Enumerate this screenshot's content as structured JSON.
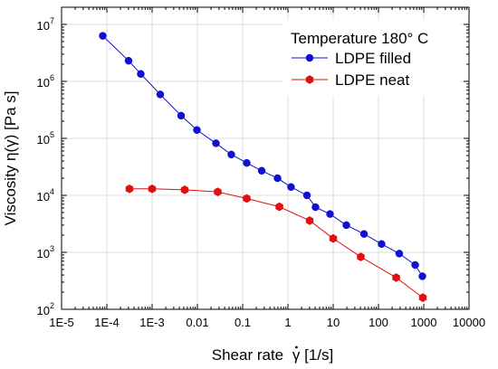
{
  "chart_data": {
    "type": "line",
    "title": "",
    "xlabel_prefix": "Shear rate",
    "xlabel_symbol": "γ",
    "xlabel_suffix": " [1/s]",
    "ylabel": "Viscosity η(γ) [Pa s]",
    "x_scale": "log",
    "y_scale": "log",
    "xlim": [
      1e-05,
      10000
    ],
    "ylim": [
      100,
      20000000
    ],
    "grid": true,
    "legend_position": "top-right",
    "legend_title": "Temperature 180° C",
    "x_ticks": [
      {
        "value": 1e-05,
        "label": "1E-5"
      },
      {
        "value": 0.0001,
        "label": "1E-4"
      },
      {
        "value": 0.001,
        "label": "1E-3"
      },
      {
        "value": 0.01,
        "label": "0.01"
      },
      {
        "value": 0.1,
        "label": "0.1"
      },
      {
        "value": 1,
        "label": "1"
      },
      {
        "value": 10,
        "label": "10"
      },
      {
        "value": 100,
        "label": "100"
      },
      {
        "value": 1000,
        "label": "1000"
      },
      {
        "value": 10000,
        "label": "10000"
      }
    ],
    "y_ticks": [
      {
        "exp": 2,
        "base": "10",
        "sup": "2"
      },
      {
        "exp": 3,
        "base": "10",
        "sup": "3"
      },
      {
        "exp": 4,
        "base": "10",
        "sup": "4"
      },
      {
        "exp": 5,
        "base": "10",
        "sup": "5"
      },
      {
        "exp": 6,
        "base": "10",
        "sup": "6"
      },
      {
        "exp": 7,
        "base": "10",
        "sup": "7"
      }
    ],
    "series": [
      {
        "name": "LDPE filled",
        "color": "#1010d0",
        "marker": "circle",
        "x": [
          8.12e-05,
          0.000302,
          0.000562,
          0.00151,
          0.00437,
          0.00977,
          0.0257,
          0.0562,
          0.123,
          0.263,
          0.589,
          1.17,
          2.63,
          4.07,
          8.51,
          19.5,
          47.9,
          117,
          288,
          646,
          933
        ],
        "y": [
          6300000,
          2300000,
          1350000,
          590000,
          250000,
          140000,
          82000,
          52000,
          37000,
          27000,
          20000,
          14000,
          10000,
          6200,
          4700,
          3000,
          2100,
          1400,
          950,
          600,
          380
        ]
      },
      {
        "name": "LDPE neat",
        "color": "#e01010",
        "marker": "hexagon",
        "x": [
          0.000316,
          0.001,
          0.00525,
          0.0282,
          0.123,
          0.646,
          3.02,
          10,
          40.7,
          246,
          955
        ],
        "y": [
          13000,
          13000,
          12500,
          11500,
          8800,
          6300,
          3600,
          1750,
          830,
          360,
          160
        ]
      }
    ]
  }
}
